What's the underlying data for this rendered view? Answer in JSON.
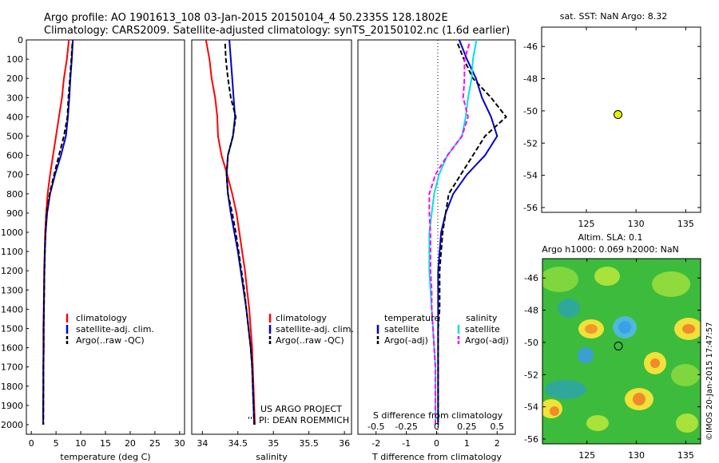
{
  "header": {
    "title_line1": "Argo profile: AO 1901613_108 03-Jan-2015 20150104_4 50.2335S 128.1802E",
    "title_line2": "Climatology: CARS2009. Satellite-adjusted climatology: synTS_20150102.nc (1.6d earlier)"
  },
  "colors": {
    "climatology": "#ff0000",
    "satellite": "#0000cc",
    "argo": "#000000",
    "sal_satellite": "#00e0e0",
    "sal_argo": "#ff00ff",
    "marker": "#e8f000"
  },
  "y_ticks": [
    "0",
    "100",
    "200",
    "300",
    "400",
    "500",
    "600",
    "700",
    "800",
    "900",
    "1000",
    "1100",
    "1200",
    "1300",
    "1400",
    "1500",
    "1600",
    "1700",
    "1800",
    "1900",
    "2000"
  ],
  "panel1": {
    "xlabel": "temperature (deg C)",
    "xticks": [
      "0",
      "5",
      "10",
      "15",
      "20",
      "25",
      "30"
    ],
    "legend": [
      "climatology",
      "satellite-adj. clim.",
      "Argo(..raw -QC)"
    ]
  },
  "panel2": {
    "xlabel": "salinity",
    "xticks": [
      "34",
      "34.5",
      "35",
      "35.5",
      "36"
    ],
    "legend": [
      "climatology",
      "satellite-adj. clim.",
      "Argo(..raw -QC)"
    ],
    "note1": "US ARGO PROJECT",
    "note2": "PI: DEAN ROEMMICH",
    "note_prefix": "'''"
  },
  "panel3": {
    "xlabel": "T difference from climatology",
    "xticks": [
      "-2",
      "-1",
      "0",
      "1",
      "2"
    ],
    "top_label": "S difference from climatology",
    "top_ticks": [
      "-0.5",
      "-0.25",
      "0",
      "0.25",
      "0.5"
    ],
    "legend_t_title": "temperature",
    "legend_s_title": "salinity",
    "legend_t": [
      "satellite",
      "Argo(-adj)"
    ],
    "legend_s": [
      "satellite",
      "Argo(-adj)"
    ]
  },
  "map1": {
    "title": "sat. SST: NaN Argo: 8.32",
    "yticks": [
      "-46",
      "-48",
      "-50",
      "-52",
      "-54",
      "-56"
    ],
    "xticks": [
      "125",
      "130",
      "135"
    ]
  },
  "map2": {
    "title_line1": "Altim. SLA: 0.1",
    "title_line2": "Argo h1000: 0.069 h2000: NaN",
    "yticks": [
      "-46",
      "-48",
      "-50",
      "-52",
      "-54",
      "-56"
    ],
    "xticks": [
      "125",
      "130",
      "135"
    ],
    "stamp": "©IMOS 20-Jan-2015 17:47:57"
  },
  "chart_data": [
    {
      "type": "line",
      "xlabel": "temperature (deg C)",
      "ylabel": "",
      "xlim": [
        -1,
        31
      ],
      "ylim": [
        2050,
        0
      ],
      "series": [
        {
          "name": "climatology",
          "x": [
            7.6,
            7.2,
            6.6,
            6.2,
            5.6,
            5.0,
            4.4,
            3.8,
            3.3,
            3.0,
            2.8,
            2.7,
            2.6,
            2.55,
            2.5,
            2.45,
            2.45,
            2.45,
            2.45,
            2.45,
            2.4
          ],
          "y": [
            0,
            100,
            200,
            300,
            400,
            500,
            600,
            700,
            800,
            900,
            1000,
            1100,
            1200,
            1300,
            1400,
            1500,
            1600,
            1700,
            1800,
            1900,
            2000
          ]
        },
        {
          "name": "satellite-adj. clim.",
          "x": [
            8.4,
            8.2,
            7.9,
            7.7,
            7.4,
            7.0,
            6.0,
            4.8,
            3.8,
            3.2,
            2.9,
            2.75,
            2.65,
            2.6,
            2.55,
            2.5,
            2.5,
            2.45,
            2.45,
            2.4,
            2.4
          ],
          "y": [
            0,
            100,
            200,
            300,
            400,
            500,
            600,
            700,
            800,
            900,
            1000,
            1100,
            1200,
            1300,
            1400,
            1500,
            1600,
            1700,
            1800,
            1900,
            2000
          ]
        },
        {
          "name": "Argo(..raw -QC)",
          "x": [
            8.3,
            8.1,
            7.8,
            7.5,
            7.3,
            6.6,
            5.6,
            4.6,
            3.7,
            3.1,
            2.9,
            2.75,
            2.65,
            2.6,
            2.55,
            2.5,
            2.5,
            2.45,
            2.45,
            2.45,
            2.45
          ],
          "y": [
            20,
            100,
            200,
            300,
            400,
            500,
            600,
            700,
            800,
            900,
            1000,
            1100,
            1200,
            1300,
            1400,
            1500,
            1600,
            1700,
            1800,
            1900,
            2000
          ]
        }
      ]
    },
    {
      "type": "line",
      "xlabel": "salinity",
      "ylabel": "",
      "xlim": [
        33.85,
        36.1
      ],
      "ylim": [
        2050,
        0
      ],
      "series": [
        {
          "name": "climatology",
          "x": [
            34.05,
            34.1,
            34.13,
            34.18,
            34.21,
            34.22,
            34.27,
            34.35,
            34.42,
            34.48,
            34.52,
            34.56,
            34.6,
            34.63,
            34.66,
            34.68,
            34.7,
            34.71,
            34.72,
            34.73,
            34.74
          ],
          "y": [
            0,
            100,
            200,
            300,
            400,
            500,
            600,
            700,
            800,
            900,
            1000,
            1100,
            1200,
            1300,
            1400,
            1500,
            1600,
            1700,
            1800,
            1900,
            2000
          ]
        },
        {
          "name": "satellite-adj. clim.",
          "x": [
            34.38,
            34.4,
            34.42,
            34.44,
            34.46,
            34.43,
            34.36,
            34.34,
            34.36,
            34.4,
            34.45,
            34.5,
            34.54,
            34.58,
            34.62,
            34.65,
            34.68,
            34.7,
            34.71,
            34.72,
            34.73
          ],
          "y": [
            0,
            100,
            200,
            300,
            400,
            500,
            600,
            700,
            800,
            900,
            1000,
            1100,
            1200,
            1300,
            1400,
            1500,
            1600,
            1700,
            1800,
            1900,
            2000
          ]
        },
        {
          "name": "Argo(..raw -QC)",
          "x": [
            34.32,
            34.33,
            34.36,
            34.4,
            34.47,
            34.43,
            34.36,
            34.34,
            34.36,
            34.42,
            34.47,
            34.51,
            34.55,
            34.59,
            34.62,
            34.65,
            34.68,
            34.7,
            34.71,
            34.72,
            34.73
          ],
          "y": [
            20,
            100,
            200,
            300,
            400,
            500,
            600,
            700,
            800,
            900,
            1000,
            1100,
            1200,
            1300,
            1400,
            1500,
            1600,
            1700,
            1800,
            1900,
            2000
          ]
        }
      ]
    },
    {
      "type": "line",
      "xlabel": "T difference from climatology",
      "ylabel": "",
      "xlim": [
        -2.6,
        2.6
      ],
      "ylim": [
        2050,
        0
      ],
      "secondary_xlabel": "S difference from climatology",
      "secondary_xlim": [
        -0.65,
        0.65
      ],
      "series": [
        {
          "name": "temperature satellite",
          "axis": "T",
          "x": [
            0.75,
            1.0,
            1.3,
            1.5,
            1.8,
            2.0,
            1.6,
            1.0,
            0.55,
            0.3,
            0.15,
            0.1,
            0.05,
            0.05,
            0.05,
            0.05,
            0.05,
            0.05,
            0.05,
            0.05,
            0.05
          ],
          "y": [
            0,
            100,
            200,
            300,
            400,
            500,
            600,
            700,
            800,
            900,
            1000,
            1100,
            1200,
            1300,
            1400,
            1500,
            1600,
            1700,
            1800,
            1900,
            2000
          ]
        },
        {
          "name": "temperature Argo(-adj)",
          "axis": "T",
          "x": [
            0.7,
            0.9,
            1.2,
            1.8,
            2.3,
            1.6,
            1.2,
            0.8,
            0.4,
            0.3,
            0.2,
            0.15,
            0.1,
            0.1,
            0.1,
            0.05,
            0.05,
            0.05,
            0.05,
            0.05,
            0.05
          ],
          "y": [
            20,
            100,
            200,
            300,
            400,
            500,
            600,
            700,
            800,
            900,
            1000,
            1100,
            1200,
            1300,
            1400,
            1500,
            1600,
            1700,
            1800,
            1900,
            2000
          ]
        },
        {
          "name": "salinity satellite",
          "axis": "S",
          "x": [
            0.33,
            0.3,
            0.29,
            0.26,
            0.24,
            0.21,
            0.09,
            0.02,
            -0.02,
            -0.04,
            -0.06,
            -0.06,
            -0.06,
            -0.05,
            -0.04,
            -0.03,
            -0.02,
            -0.01,
            -0.01,
            -0.01,
            -0.01
          ],
          "y": [
            0,
            100,
            200,
            300,
            400,
            500,
            600,
            700,
            800,
            900,
            1000,
            1100,
            1200,
            1300,
            1400,
            1500,
            1600,
            1700,
            1800,
            1900,
            2000
          ]
        },
        {
          "name": "salinity Argo(-adj)",
          "axis": "S",
          "x": [
            0.27,
            0.23,
            0.23,
            0.22,
            0.26,
            0.21,
            0.09,
            -0.01,
            -0.06,
            -0.06,
            -0.05,
            -0.05,
            -0.05,
            -0.04,
            -0.04,
            -0.03,
            -0.02,
            -0.01,
            -0.01,
            -0.01,
            -0.01
          ],
          "y": [
            20,
            100,
            200,
            300,
            400,
            500,
            600,
            700,
            800,
            900,
            1000,
            1100,
            1200,
            1300,
            1400,
            1500,
            1600,
            1700,
            1800,
            1900,
            2000
          ]
        }
      ]
    },
    {
      "type": "scatter",
      "title": "sat. SST: NaN Argo: 8.32",
      "xlim": [
        120.5,
        136.5
      ],
      "ylim": [
        -56.3,
        -44.8
      ],
      "points": [
        {
          "x": 128.18,
          "y": -50.23
        }
      ]
    },
    {
      "type": "heatmap",
      "title": "Altim. SLA: 0.1",
      "xlim": [
        120.5,
        136.5
      ],
      "ylim": [
        -56.3,
        -44.8
      ],
      "points": [
        {
          "x": 128.18,
          "y": -50.23
        }
      ]
    }
  ]
}
